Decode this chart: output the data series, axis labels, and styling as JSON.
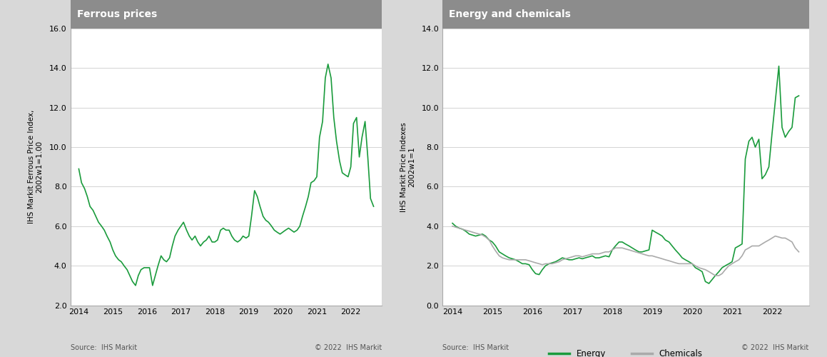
{
  "panel1_title": "Ferrous prices",
  "panel2_title": "Energy and chemicals",
  "panel1_ylabel": "IHS Markit Ferrous Price Index,\n2002w1=1.00",
  "panel2_ylabel": "IHS Markit Price Indexes\n2002w1=1",
  "panel1_ylim": [
    2.0,
    16.0
  ],
  "panel2_ylim": [
    0.0,
    14.0
  ],
  "panel1_yticks": [
    2.0,
    4.0,
    6.0,
    8.0,
    10.0,
    12.0,
    14.0,
    16.0
  ],
  "panel2_yticks": [
    0.0,
    2.0,
    4.0,
    6.0,
    8.0,
    10.0,
    12.0,
    14.0
  ],
  "source_text": "Source:  IHS Markit",
  "copyright_text": "© 2022  IHS Markit",
  "line_color_green": "#1a9b3c",
  "line_color_gray": "#aaaaaa",
  "title_bg_color": "#8c8c8c",
  "title_text_color": "#ffffff",
  "bg_color": "#d8d8d8",
  "plot_bg_color": "#ffffff",
  "grid_color": "#cccccc",
  "legend_energy": "Energy",
  "legend_chemicals": "Chemicals",
  "ferrous_x": [
    2014.0,
    2014.08,
    2014.17,
    2014.25,
    2014.33,
    2014.42,
    2014.5,
    2014.58,
    2014.67,
    2014.75,
    2014.83,
    2014.92,
    2015.0,
    2015.08,
    2015.17,
    2015.25,
    2015.33,
    2015.42,
    2015.5,
    2015.58,
    2015.67,
    2015.75,
    2015.83,
    2015.92,
    2016.0,
    2016.08,
    2016.17,
    2016.25,
    2016.33,
    2016.42,
    2016.5,
    2016.58,
    2016.67,
    2016.75,
    2016.83,
    2016.92,
    2017.0,
    2017.08,
    2017.17,
    2017.25,
    2017.33,
    2017.42,
    2017.5,
    2017.58,
    2017.67,
    2017.75,
    2017.83,
    2017.92,
    2018.0,
    2018.08,
    2018.17,
    2018.25,
    2018.33,
    2018.42,
    2018.5,
    2018.58,
    2018.67,
    2018.75,
    2018.83,
    2018.92,
    2019.0,
    2019.08,
    2019.17,
    2019.25,
    2019.33,
    2019.42,
    2019.5,
    2019.58,
    2019.67,
    2019.75,
    2019.83,
    2019.92,
    2020.0,
    2020.08,
    2020.17,
    2020.25,
    2020.33,
    2020.42,
    2020.5,
    2020.58,
    2020.67,
    2020.75,
    2020.83,
    2020.92,
    2021.0,
    2021.08,
    2021.17,
    2021.25,
    2021.33,
    2021.42,
    2021.5,
    2021.58,
    2021.67,
    2021.75,
    2021.83,
    2021.92,
    2022.0,
    2022.08,
    2022.17,
    2022.25,
    2022.33,
    2022.42,
    2022.5,
    2022.58,
    2022.67
  ],
  "ferrous_y": [
    8.9,
    8.2,
    7.9,
    7.5,
    7.0,
    6.8,
    6.5,
    6.2,
    6.0,
    5.8,
    5.5,
    5.2,
    4.8,
    4.5,
    4.3,
    4.2,
    4.0,
    3.8,
    3.5,
    3.2,
    3.0,
    3.5,
    3.8,
    3.9,
    3.9,
    3.9,
    3.0,
    3.5,
    4.0,
    4.5,
    4.3,
    4.2,
    4.4,
    5.0,
    5.5,
    5.8,
    6.0,
    6.2,
    5.8,
    5.5,
    5.3,
    5.5,
    5.2,
    5.0,
    5.2,
    5.3,
    5.5,
    5.2,
    5.2,
    5.3,
    5.8,
    5.9,
    5.8,
    5.8,
    5.5,
    5.3,
    5.2,
    5.3,
    5.5,
    5.4,
    5.5,
    6.5,
    7.8,
    7.5,
    7.0,
    6.5,
    6.3,
    6.2,
    6.0,
    5.8,
    5.7,
    5.6,
    5.7,
    5.8,
    5.9,
    5.8,
    5.7,
    5.8,
    6.0,
    6.5,
    7.0,
    7.5,
    8.2,
    8.3,
    8.5,
    10.5,
    11.3,
    13.5,
    14.2,
    13.5,
    11.5,
    10.3,
    9.3,
    8.7,
    8.6,
    8.5,
    9.0,
    11.2,
    11.5,
    9.5,
    10.5,
    11.3,
    9.5,
    7.4,
    7.0
  ],
  "energy_x": [
    2014.0,
    2014.08,
    2014.17,
    2014.25,
    2014.33,
    2014.42,
    2014.5,
    2014.58,
    2014.67,
    2014.75,
    2014.83,
    2014.92,
    2015.0,
    2015.08,
    2015.17,
    2015.25,
    2015.33,
    2015.42,
    2015.5,
    2015.58,
    2015.67,
    2015.75,
    2015.83,
    2015.92,
    2016.0,
    2016.08,
    2016.17,
    2016.25,
    2016.33,
    2016.42,
    2016.5,
    2016.58,
    2016.67,
    2016.75,
    2016.83,
    2016.92,
    2017.0,
    2017.08,
    2017.17,
    2017.25,
    2017.33,
    2017.42,
    2017.5,
    2017.58,
    2017.67,
    2017.75,
    2017.83,
    2017.92,
    2018.0,
    2018.08,
    2018.17,
    2018.25,
    2018.33,
    2018.42,
    2018.5,
    2018.58,
    2018.67,
    2018.75,
    2018.83,
    2018.92,
    2019.0,
    2019.08,
    2019.17,
    2019.25,
    2019.33,
    2019.42,
    2019.5,
    2019.58,
    2019.67,
    2019.75,
    2019.83,
    2019.92,
    2020.0,
    2020.08,
    2020.17,
    2020.25,
    2020.33,
    2020.42,
    2020.5,
    2020.58,
    2020.67,
    2020.75,
    2020.83,
    2020.92,
    2021.0,
    2021.08,
    2021.17,
    2021.25,
    2021.33,
    2021.42,
    2021.5,
    2021.58,
    2021.67,
    2021.75,
    2021.83,
    2021.92,
    2022.0,
    2022.08,
    2022.17,
    2022.25,
    2022.33,
    2022.42,
    2022.5,
    2022.58,
    2022.67
  ],
  "energy_y": [
    4.15,
    4.0,
    3.9,
    3.85,
    3.75,
    3.6,
    3.55,
    3.5,
    3.55,
    3.6,
    3.5,
    3.3,
    3.2,
    3.0,
    2.7,
    2.6,
    2.5,
    2.4,
    2.35,
    2.3,
    2.2,
    2.1,
    2.1,
    2.05,
    1.8,
    1.6,
    1.55,
    1.8,
    2.0,
    2.1,
    2.15,
    2.2,
    2.3,
    2.4,
    2.35,
    2.3,
    2.3,
    2.35,
    2.4,
    2.35,
    2.4,
    2.45,
    2.5,
    2.4,
    2.4,
    2.45,
    2.5,
    2.45,
    2.8,
    3.0,
    3.2,
    3.2,
    3.1,
    3.0,
    2.9,
    2.8,
    2.7,
    2.7,
    2.75,
    2.8,
    3.8,
    3.7,
    3.6,
    3.5,
    3.3,
    3.2,
    3.0,
    2.8,
    2.6,
    2.4,
    2.3,
    2.2,
    2.1,
    1.9,
    1.8,
    1.7,
    1.2,
    1.1,
    1.3,
    1.5,
    1.7,
    1.9,
    2.0,
    2.1,
    2.2,
    2.9,
    3.0,
    3.1,
    7.4,
    8.3,
    8.5,
    8.0,
    8.4,
    6.4,
    6.6,
    7.0,
    8.7,
    10.3,
    12.1,
    9.0,
    8.5,
    8.8,
    9.0,
    10.5,
    10.6
  ],
  "chemicals_x": [
    2014.0,
    2014.08,
    2014.17,
    2014.25,
    2014.33,
    2014.42,
    2014.5,
    2014.58,
    2014.67,
    2014.75,
    2014.83,
    2014.92,
    2015.0,
    2015.08,
    2015.17,
    2015.25,
    2015.33,
    2015.42,
    2015.5,
    2015.58,
    2015.67,
    2015.75,
    2015.83,
    2015.92,
    2016.0,
    2016.08,
    2016.17,
    2016.25,
    2016.33,
    2016.42,
    2016.5,
    2016.58,
    2016.67,
    2016.75,
    2016.83,
    2016.92,
    2017.0,
    2017.08,
    2017.17,
    2017.25,
    2017.33,
    2017.42,
    2017.5,
    2017.58,
    2017.67,
    2017.75,
    2017.83,
    2017.92,
    2018.0,
    2018.08,
    2018.17,
    2018.25,
    2018.33,
    2018.42,
    2018.5,
    2018.58,
    2018.67,
    2018.75,
    2018.83,
    2018.92,
    2019.0,
    2019.08,
    2019.17,
    2019.25,
    2019.33,
    2019.42,
    2019.5,
    2019.58,
    2019.67,
    2019.75,
    2019.83,
    2019.92,
    2020.0,
    2020.08,
    2020.17,
    2020.25,
    2020.33,
    2020.42,
    2020.5,
    2020.58,
    2020.67,
    2020.75,
    2020.83,
    2020.92,
    2021.0,
    2021.08,
    2021.17,
    2021.25,
    2021.33,
    2021.42,
    2021.5,
    2021.58,
    2021.67,
    2021.75,
    2021.83,
    2021.92,
    2022.0,
    2022.08,
    2022.17,
    2022.25,
    2022.33,
    2022.42,
    2022.5,
    2022.58,
    2022.67
  ],
  "chemicals_y": [
    4.0,
    3.95,
    3.9,
    3.85,
    3.8,
    3.75,
    3.7,
    3.65,
    3.6,
    3.55,
    3.45,
    3.3,
    3.0,
    2.75,
    2.5,
    2.4,
    2.35,
    2.3,
    2.3,
    2.3,
    2.3,
    2.3,
    2.3,
    2.25,
    2.2,
    2.15,
    2.1,
    2.05,
    2.1,
    2.1,
    2.1,
    2.15,
    2.2,
    2.3,
    2.35,
    2.4,
    2.45,
    2.5,
    2.5,
    2.45,
    2.5,
    2.55,
    2.6,
    2.6,
    2.6,
    2.65,
    2.7,
    2.7,
    2.8,
    2.9,
    2.9,
    2.9,
    2.85,
    2.8,
    2.75,
    2.7,
    2.65,
    2.6,
    2.55,
    2.5,
    2.5,
    2.45,
    2.4,
    2.35,
    2.3,
    2.25,
    2.2,
    2.15,
    2.1,
    2.1,
    2.1,
    2.1,
    2.1,
    2.0,
    1.9,
    1.85,
    1.8,
    1.7,
    1.6,
    1.5,
    1.5,
    1.6,
    1.8,
    2.0,
    2.1,
    2.2,
    2.3,
    2.5,
    2.8,
    2.9,
    3.0,
    3.0,
    3.0,
    3.1,
    3.2,
    3.3,
    3.4,
    3.5,
    3.45,
    3.4,
    3.4,
    3.3,
    3.2,
    2.9,
    2.7
  ]
}
